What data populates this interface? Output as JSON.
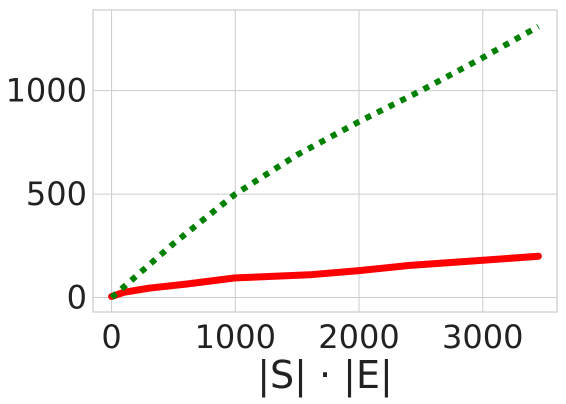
{
  "chart_data": {
    "type": "line",
    "title": "",
    "xlabel": "|S| · |E|",
    "ylabel": "",
    "xlim": [
      -150,
      3600
    ],
    "ylim": [
      -70,
      1390
    ],
    "xticks": [
      0,
      1000,
      2000,
      3000
    ],
    "yticks": [
      0,
      500,
      1000
    ],
    "xtick_labels": [
      "0",
      "1000",
      "2000",
      "3000"
    ],
    "ytick_labels": [
      "0",
      "500",
      "1000"
    ],
    "grid": true,
    "legend": "none",
    "series": [
      {
        "style": "solid",
        "color": "#ff0000",
        "x": [
          0,
          100,
          300,
          600,
          1000,
          1600,
          2000,
          2400,
          3000,
          3450
        ],
        "y": [
          5,
          25,
          45,
          65,
          95,
          110,
          130,
          155,
          180,
          200
        ]
      },
      {
        "style": "dotted",
        "color": "#008000",
        "x": [
          0,
          500,
          1000,
          1500,
          2000,
          2500,
          3000,
          3450
        ],
        "y": [
          0,
          260,
          500,
          690,
          850,
          1000,
          1160,
          1310
        ]
      }
    ]
  }
}
